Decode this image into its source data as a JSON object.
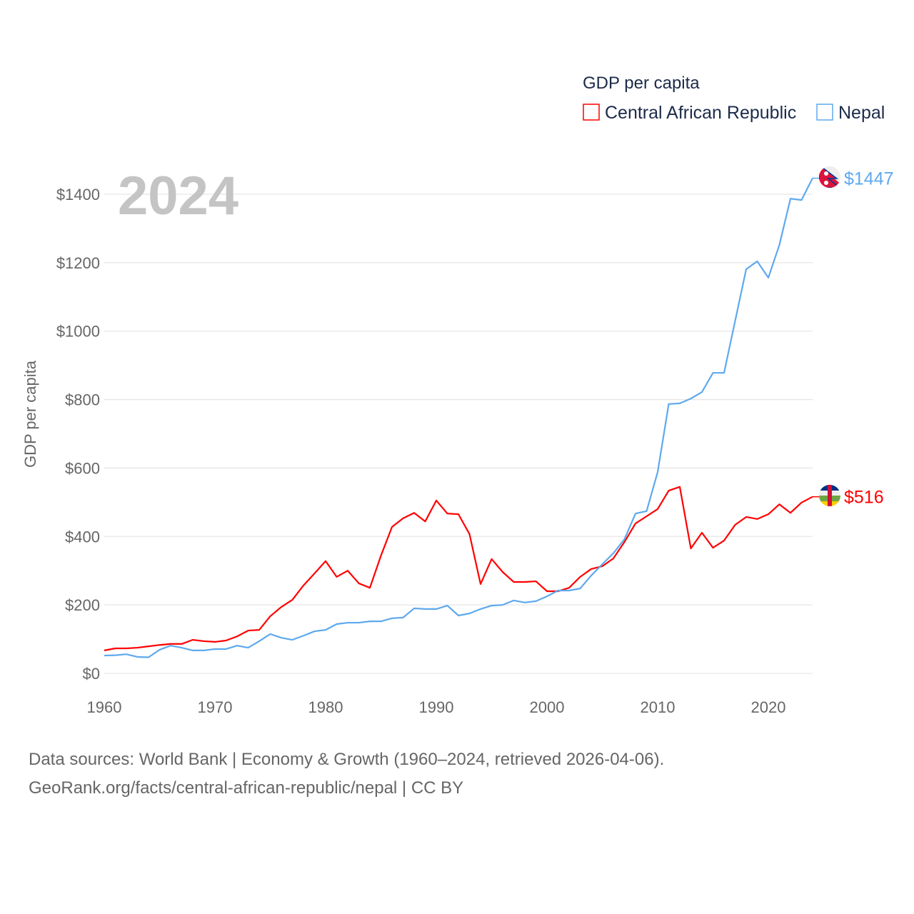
{
  "chart_data": {
    "type": "line",
    "title": "GDP per capita",
    "ylabel": "GDP per capita",
    "xlabel": "",
    "year_label": "2024",
    "xlim": [
      1960,
      2024
    ],
    "ylim": [
      0,
      1400
    ],
    "x_ticks": [
      "1960",
      "1970",
      "1980",
      "1990",
      "2000",
      "2010",
      "2020"
    ],
    "y_ticks": [
      {
        "value": 0,
        "label": "$0"
      },
      {
        "value": 200,
        "label": "$200"
      },
      {
        "value": 400,
        "label": "$400"
      },
      {
        "value": 600,
        "label": "$600"
      },
      {
        "value": 800,
        "label": "$800"
      },
      {
        "value": 1000,
        "label": "$1000"
      },
      {
        "value": 1200,
        "label": "$1200"
      },
      {
        "value": 1400,
        "label": "$1400"
      }
    ],
    "grid": true,
    "legend_position": "top-right",
    "x": [
      1960,
      1961,
      1962,
      1963,
      1964,
      1965,
      1966,
      1967,
      1968,
      1969,
      1970,
      1971,
      1972,
      1973,
      1974,
      1975,
      1976,
      1977,
      1978,
      1979,
      1980,
      1981,
      1982,
      1983,
      1984,
      1985,
      1986,
      1987,
      1988,
      1989,
      1990,
      1991,
      1992,
      1993,
      1994,
      1995,
      1996,
      1997,
      1998,
      1999,
      2000,
      2001,
      2002,
      2003,
      2004,
      2005,
      2006,
      2007,
      2008,
      2009,
      2010,
      2011,
      2012,
      2013,
      2014,
      2015,
      2016,
      2017,
      2018,
      2019,
      2020,
      2021,
      2022,
      2023,
      2024
    ],
    "series": [
      {
        "name": "Central African Republic",
        "color": "#ff0000",
        "end_label": "$516",
        "values": [
          67,
          73,
          73,
          75,
          79,
          83,
          86,
          86,
          98,
          94,
          92,
          96,
          108,
          125,
          127,
          167,
          194,
          215,
          257,
          292,
          328,
          282,
          300,
          263,
          250,
          344,
          428,
          453,
          469,
          444,
          505,
          467,
          465,
          407,
          261,
          334,
          296,
          267,
          267,
          269,
          240,
          240,
          250,
          282,
          305,
          313,
          336,
          384,
          438,
          459,
          480,
          534,
          545,
          365,
          411,
          367,
          388,
          434,
          457,
          451,
          465,
          494,
          469,
          499,
          516
        ]
      },
      {
        "name": "Nepal",
        "color": "#5ea9ee",
        "end_label": "$1447",
        "values": [
          52,
          53,
          56,
          48,
          47,
          69,
          81,
          75,
          67,
          67,
          71,
          71,
          81,
          75,
          94,
          115,
          104,
          98,
          110,
          123,
          127,
          144,
          148,
          148,
          152,
          152,
          161,
          163,
          190,
          188,
          188,
          198,
          169,
          175,
          188,
          198,
          200,
          213,
          207,
          211,
          225,
          242,
          242,
          248,
          286,
          319,
          351,
          392,
          467,
          474,
          588,
          787,
          789,
          803,
          822,
          878,
          878,
          1030,
          1181,
          1204,
          1156,
          1252,
          1387,
          1383,
          1447
        ]
      }
    ]
  },
  "footer": {
    "line1": "Data sources: World Bank | Economy & Growth (1960–2024, retrieved 2026-04-06).",
    "line2": "GeoRank.org/facts/central-african-republic/nepal | CC BY"
  }
}
